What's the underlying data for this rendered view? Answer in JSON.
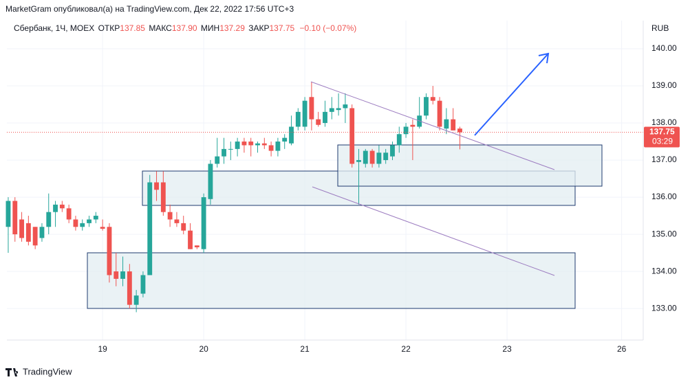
{
  "header": {
    "text": "MarketGram опубликовал(а) на TradingView.com, Дек 22, 2022 17:56 UTC+3"
  },
  "footer": {
    "brand": "TradingView"
  },
  "chart_data": {
    "type": "candlestick",
    "symbol": "Сбербанк, 1Ч, MOEX",
    "legend": {
      "open_label": "ОТКР",
      "open": "137.85",
      "high_label": "МАКС",
      "high": "137.90",
      "low_label": "МИН",
      "low": "137.29",
      "close_label": "ЗАКР",
      "close": "137.75",
      "change": "−0.10 (−0.07%)"
    },
    "currency": "RUB",
    "up_color": "#26a69a",
    "down_color": "#ef5350",
    "open": [
      135.2,
      135.9,
      135.4,
      135.3,
      135.2,
      134.9,
      135.2,
      135.6,
      135.8,
      135.7,
      135.4,
      135.2,
      135.3,
      135.4,
      135.2,
      135.2,
      134.0,
      133.8,
      134.0,
      133.1,
      133.4,
      133.9,
      136.4,
      136.4,
      135.6,
      135.4,
      135.3,
      135.1,
      134.7,
      134.6,
      135.95,
      136.9,
      137.1,
      137.3,
      137.3,
      137.5,
      137.5,
      137.4,
      137.45,
      137.4,
      137.25,
      137.5,
      137.45,
      137.9,
      137.9,
      138.7,
      138.1,
      138.0,
      138.3,
      138.35,
      138.4,
      138.4,
      136.95,
      136.9,
      137.25,
      136.9,
      137.0,
      137.1,
      137.4,
      137.7,
      137.95,
      137.9,
      138.2,
      138.7,
      138.6,
      137.85,
      138.1,
      137.85
    ],
    "high": [
      136.0,
      136.0,
      135.6,
      135.5,
      135.2,
      135.3,
      136.1,
      135.9,
      135.9,
      135.8,
      135.5,
      135.4,
      135.5,
      135.6,
      135.4,
      135.3,
      134.5,
      134.4,
      134.2,
      133.5,
      134.0,
      136.6,
      136.7,
      136.7,
      135.8,
      135.6,
      135.5,
      135.3,
      134.7,
      136.1,
      137.0,
      137.6,
      137.6,
      137.5,
      137.6,
      137.6,
      137.6,
      137.5,
      137.6,
      137.5,
      137.6,
      137.7,
      138.2,
      138.4,
      138.7,
      139.1,
      138.3,
      138.6,
      138.7,
      138.8,
      138.8,
      138.5,
      137.3,
      137.3,
      137.3,
      137.4,
      137.3,
      137.5,
      137.9,
      138.0,
      138.1,
      138.7,
      138.8,
      139.0,
      138.7,
      138.4,
      138.4,
      137.9
    ],
    "low": [
      134.5,
      134.8,
      134.8,
      134.7,
      134.6,
      134.8,
      135.0,
      135.2,
      135.6,
      135.3,
      135.1,
      135.1,
      135.2,
      135.3,
      135.1,
      133.7,
      133.6,
      133.6,
      133.0,
      132.9,
      133.3,
      133.9,
      135.9,
      135.5,
      135.2,
      135.2,
      135.0,
      134.6,
      134.6,
      134.5,
      135.8,
      136.8,
      136.9,
      137.0,
      137.1,
      137.2,
      137.1,
      137.2,
      137.3,
      137.1,
      137.1,
      137.3,
      137.4,
      137.8,
      137.8,
      137.8,
      137.9,
      137.9,
      138.1,
      138.2,
      138.0,
      136.8,
      135.8,
      136.8,
      136.8,
      136.8,
      136.9,
      137.0,
      137.2,
      137.6,
      137.0,
      137.85,
      138.1,
      138.5,
      137.8,
      137.7,
      137.8,
      137.29
    ],
    "close": [
      135.9,
      135.0,
      134.9,
      134.8,
      134.7,
      135.2,
      135.6,
      135.8,
      135.7,
      135.4,
      135.2,
      135.3,
      135.4,
      135.5,
      135.15,
      133.9,
      133.8,
      134.0,
      133.1,
      133.35,
      133.9,
      136.4,
      136.2,
      135.6,
      135.4,
      135.3,
      135.1,
      134.6,
      134.65,
      136.0,
      136.9,
      137.1,
      137.3,
      137.3,
      137.5,
      137.4,
      137.4,
      137.45,
      137.4,
      137.25,
      137.5,
      137.6,
      137.9,
      138.3,
      138.6,
      138.1,
      137.95,
      138.3,
      138.4,
      138.4,
      138.5,
      136.9,
      137.0,
      137.25,
      136.9,
      137.2,
      137.2,
      137.4,
      137.7,
      137.9,
      137.9,
      138.2,
      138.7,
      138.6,
      137.9,
      138.1,
      137.8,
      137.75
    ],
    "ylim": [
      132.15,
      140.76
    ],
    "yticks": [
      {
        "value": 133,
        "label": "133.00"
      },
      {
        "value": 134,
        "label": "134.00"
      },
      {
        "value": 135,
        "label": "135.00"
      },
      {
        "value": 136,
        "label": "136.00"
      },
      {
        "value": 137,
        "label": "137.00"
      },
      {
        "value": 138,
        "label": "138.00"
      },
      {
        "value": 139,
        "label": "139.00"
      },
      {
        "value": 140,
        "label": "140.00"
      }
    ],
    "xlim": [
      -0.2,
      94.2
    ],
    "xticks": [
      {
        "value": 14,
        "label": "19"
      },
      {
        "value": 29,
        "label": "20"
      },
      {
        "value": 44,
        "label": "21"
      },
      {
        "value": 59,
        "label": "22"
      },
      {
        "value": 74,
        "label": "23"
      },
      {
        "value": 91,
        "label": "26"
      }
    ],
    "last_price": 137.75,
    "countdown": "03:29",
    "grid": true
  }
}
